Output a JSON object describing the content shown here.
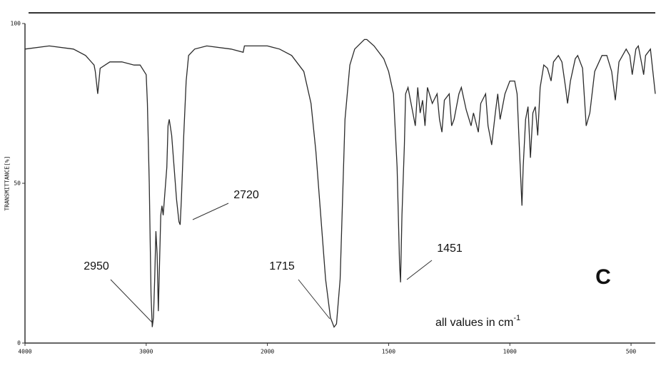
{
  "chart_data": {
    "type": "line",
    "ylabel": "TRANSMITTANCE[%]",
    "xlim": [
      4000,
      400
    ],
    "ylim": [
      0,
      100
    ],
    "x_scale": {
      "break": 2000,
      "expansion": 2
    },
    "xticks": [
      4000,
      3000,
      2000,
      1500,
      1000,
      500
    ],
    "yticks": [
      0,
      50,
      100
    ],
    "color": "#2b2b2b",
    "x": [
      4000,
      3800,
      3600,
      3500,
      3430,
      3420,
      3400,
      3380,
      3300,
      3200,
      3100,
      3050,
      3000,
      2990,
      2975,
      2960,
      2950,
      2940,
      2930,
      2920,
      2910,
      2900,
      2890,
      2880,
      2870,
      2860,
      2850,
      2830,
      2820,
      2810,
      2790,
      2770,
      2750,
      2730,
      2720,
      2710,
      2690,
      2670,
      2650,
      2600,
      2500,
      2300,
      2200,
      2190,
      2000,
      1950,
      1900,
      1850,
      1820,
      1800,
      1780,
      1760,
      1740,
      1725,
      1715,
      1700,
      1690,
      1680,
      1660,
      1640,
      1600,
      1590,
      1560,
      1520,
      1500,
      1480,
      1465,
      1455,
      1451,
      1445,
      1435,
      1430,
      1420,
      1400,
      1390,
      1380,
      1370,
      1360,
      1350,
      1340,
      1320,
      1300,
      1290,
      1280,
      1270,
      1250,
      1240,
      1230,
      1210,
      1200,
      1180,
      1160,
      1150,
      1130,
      1120,
      1100,
      1090,
      1080,
      1075,
      1060,
      1050,
      1040,
      1020,
      1000,
      980,
      970,
      960,
      950,
      945,
      935,
      925,
      915,
      905,
      895,
      885,
      875,
      860,
      845,
      830,
      820,
      800,
      785,
      770,
      762,
      750,
      730,
      720,
      700,
      685,
      670,
      650,
      620,
      600,
      580,
      565,
      550,
      520,
      505,
      495,
      480,
      470,
      455,
      448,
      440,
      420,
      410,
      400
    ],
    "values": [
      92,
      93,
      92,
      90,
      87,
      85,
      78,
      86,
      88,
      88,
      87,
      87,
      84,
      75,
      50,
      15,
      5,
      8,
      20,
      35,
      28,
      10,
      25,
      40,
      43,
      40,
      45,
      55,
      68,
      70,
      65,
      55,
      45,
      38,
      37,
      45,
      65,
      82,
      90,
      92,
      93,
      92,
      91,
      93,
      93,
      92,
      90,
      85,
      75,
      60,
      40,
      20,
      8,
      5,
      6,
      20,
      45,
      70,
      87,
      92,
      95,
      95,
      93,
      89,
      85,
      78,
      55,
      25,
      19,
      40,
      62,
      78,
      80,
      72,
      68,
      80,
      72,
      76,
      68,
      80,
      75,
      78,
      70,
      66,
      76,
      78,
      68,
      70,
      78,
      80,
      73,
      68,
      72,
      66,
      75,
      78,
      68,
      64,
      62,
      72,
      78,
      70,
      78,
      82,
      82,
      78,
      60,
      43,
      55,
      70,
      74,
      58,
      72,
      74,
      65,
      80,
      87,
      86,
      82,
      88,
      90,
      88,
      80,
      75,
      82,
      89,
      90,
      86,
      68,
      72,
      85,
      90,
      90,
      85,
      76,
      88,
      92,
      90,
      84,
      92,
      93,
      87,
      84,
      90,
      92,
      85,
      78
    ],
    "annotations": [
      {
        "label": "2950"
      },
      {
        "label": "2720"
      },
      {
        "label": "1715"
      },
      {
        "label": "1451"
      }
    ],
    "panel_label": "C",
    "note": {
      "text": "all values in cm",
      "superscript": "-1"
    }
  }
}
